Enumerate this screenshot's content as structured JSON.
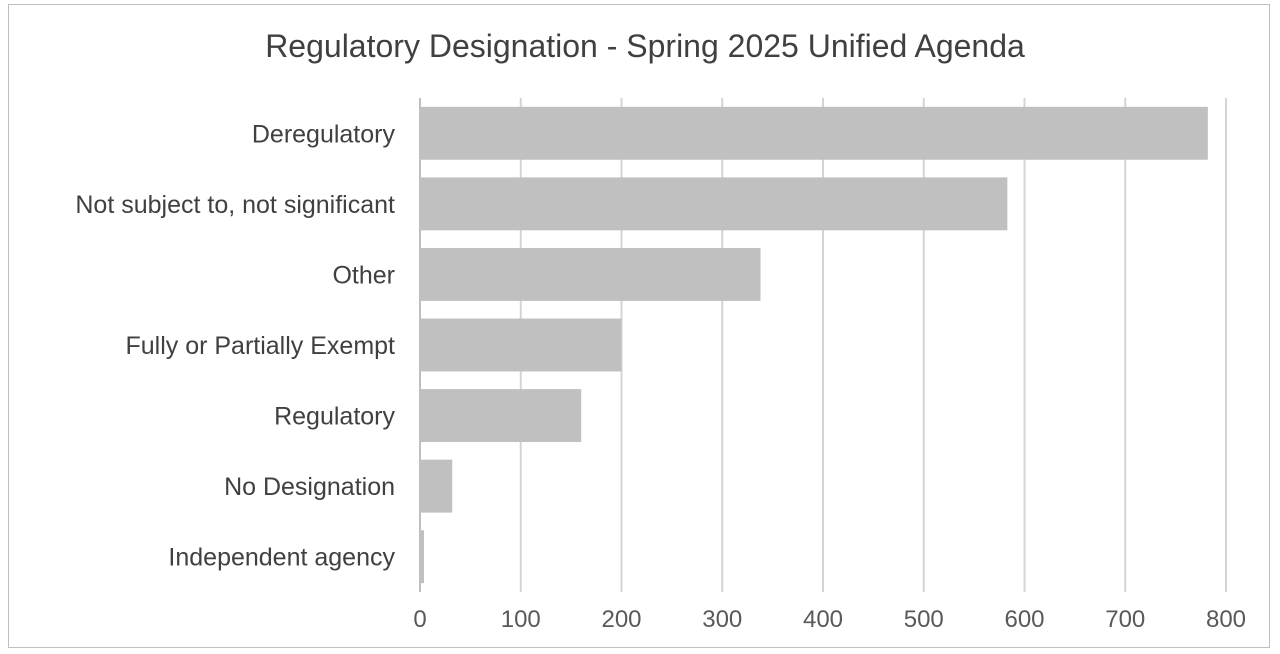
{
  "chart_data": {
    "type": "bar",
    "orientation": "horizontal",
    "title": "Regulatory Designation - Spring 2025 Unified Agenda",
    "xlabel": "",
    "ylabel": "",
    "categories": [
      "Deregulatory",
      "Not subject to, not significant",
      "Other",
      "Fully or Partially Exempt",
      "Regulatory",
      "No Designation",
      "Independent agency"
    ],
    "values": [
      782,
      583,
      338,
      200,
      160,
      32,
      4
    ],
    "xlim": [
      0,
      800
    ],
    "xticks": [
      0,
      100,
      200,
      300,
      400,
      500,
      600,
      700,
      800
    ],
    "grid": "vertical",
    "legend": "none",
    "bar_color": "#c0c0c0"
  }
}
